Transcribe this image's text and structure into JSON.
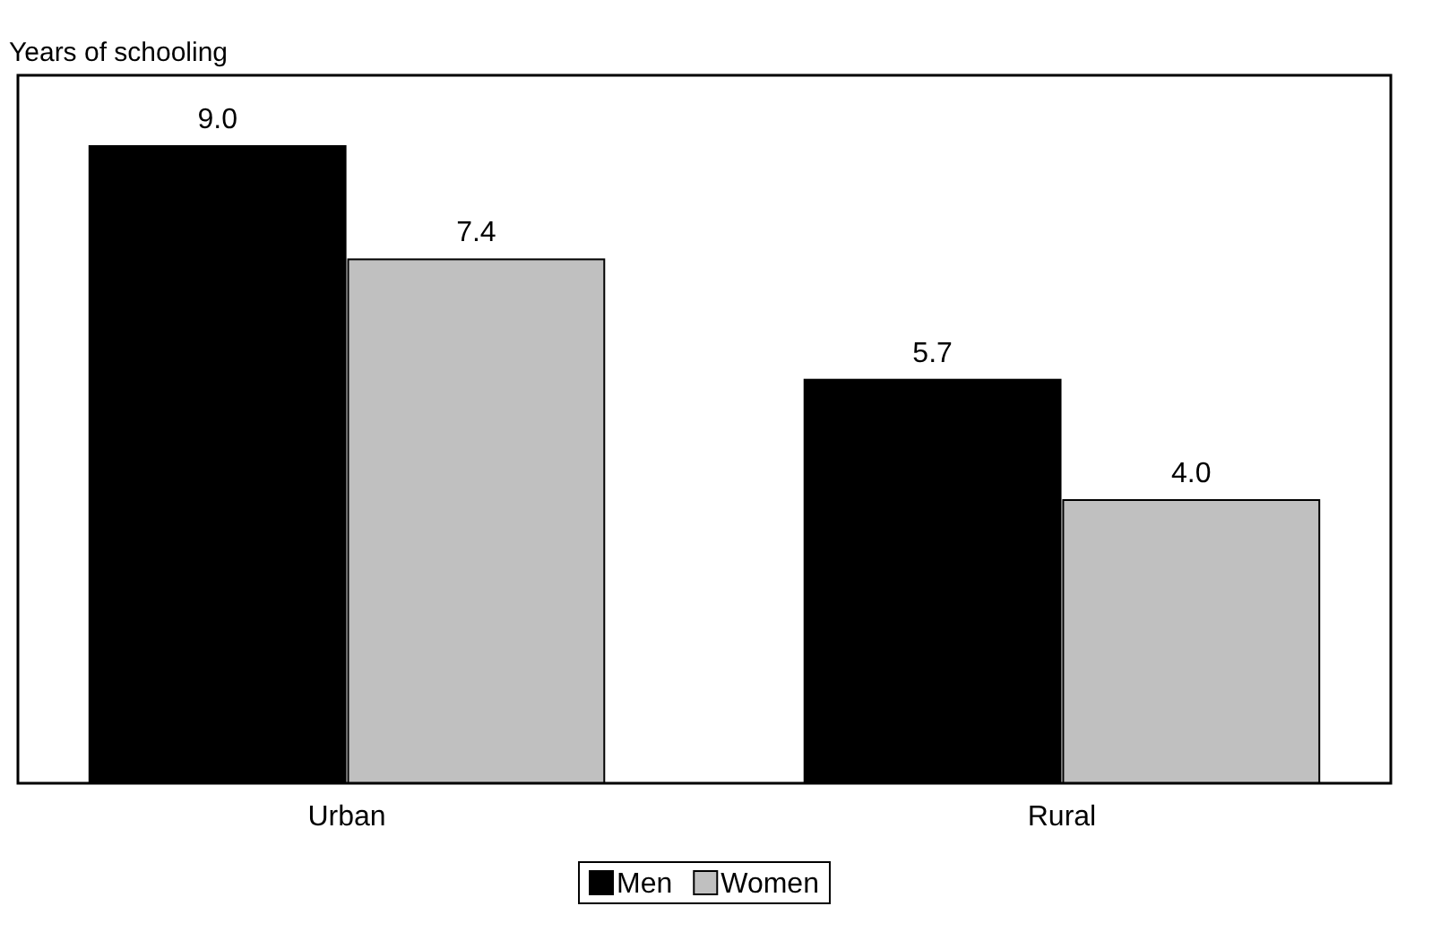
{
  "chart_data": {
    "type": "bar",
    "ylabel": "Years of schooling",
    "categories": [
      "Urban",
      "Rural"
    ],
    "series": [
      {
        "name": "Men",
        "color": "#000000",
        "values": [
          9.0,
          5.7
        ],
        "value_labels": [
          "9.0",
          "5.7"
        ]
      },
      {
        "name": "Women",
        "color": "#c0c0c0",
        "values": [
          7.4,
          4.0
        ],
        "value_labels": [
          "7.4",
          "4.0"
        ]
      }
    ],
    "ylim": [
      0,
      10
    ],
    "tick_labels": "x",
    "legend": "bottom"
  }
}
